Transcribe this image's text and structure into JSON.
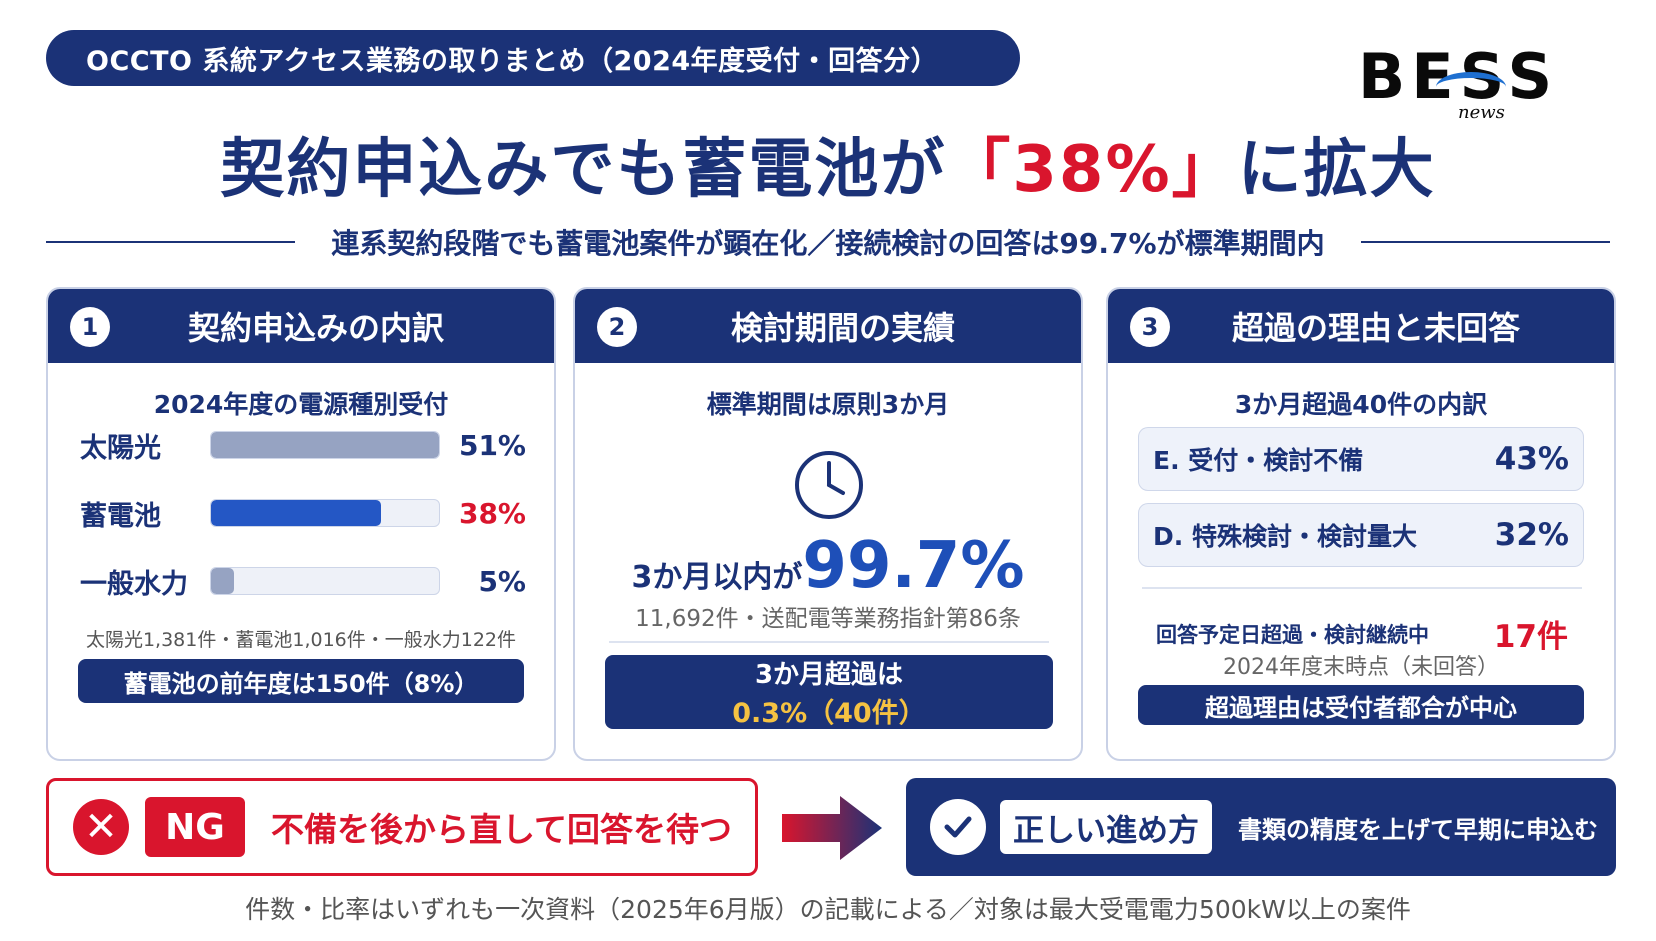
{
  "header": {
    "pill_title": "OCCTO 系統アクセス業務の取りまとめ（2024年度受付・回答分）"
  },
  "logo": {
    "text": "BESS",
    "sub": "news"
  },
  "headline": {
    "pre": "契約申込みでも蓄電池が",
    "highlight": "「38%」",
    "post": "に拡大"
  },
  "subline": "連系契約段階でも蓄電池案件が顕在化／接続検討の回答は99.7%が標準期間内",
  "panel1": {
    "num": "1",
    "title": "契約申込みの内訳",
    "subtitle": "2024年度の電源種別受付",
    "bars": [
      {
        "label": "太陽光",
        "value": 51,
        "display": "51%",
        "color": "#96a3c2",
        "highlight": false
      },
      {
        "label": "蓄電池",
        "value": 38,
        "display": "38%",
        "color": "#2457c5",
        "highlight": true
      },
      {
        "label": "一般水力",
        "value": 5,
        "display": "5%",
        "color": "#96a3c2",
        "highlight": false
      }
    ],
    "note": "太陽光1,381件・蓄電池1,016件・一般水力122件",
    "box": "蓄電池の前年度は150件（8%）"
  },
  "panel2": {
    "num": "2",
    "title": "検討期間の実績",
    "subtitle": "標準期間は原則3か月",
    "icon": "clock-icon",
    "big_pre": "3か月以内が",
    "big_num": "99.7%",
    "note": "11,692件・送配電等業務指針第86条",
    "box_line1": "3か月超過は",
    "box_line2": "0.3%（40件）"
  },
  "panel3": {
    "num": "3",
    "title": "超過の理由と未回答",
    "subtitle": "3か月超過40件の内訳",
    "reasons": [
      {
        "label": "E. 受付・検討不備",
        "value": "43%"
      },
      {
        "label": "D. 特殊検討・検討量大",
        "value": "32%"
      }
    ],
    "pending_label": "回答予定日超過・検討継続中",
    "pending_value": "17件",
    "pending_note": "2024年度末時点（未回答）",
    "box": "超過理由は受付者都合が中心"
  },
  "bottom": {
    "ng_icon": "x-icon",
    "ng_tag": "NG",
    "ng_text": "不備を後から直して回答を待つ",
    "ok_icon": "check-icon",
    "ok_tag": "正しい進め方",
    "ok_text": "書類の精度を上げて早期に申込む"
  },
  "footer": "件数・比率はいずれも一次資料（2025年6月版）の記載による／対象は最大受電電力500kW以上の案件",
  "colors": {
    "navy": "#1b3277",
    "red": "#d9152d",
    "blue": "#2457c5",
    "gold": "#f5c242"
  }
}
